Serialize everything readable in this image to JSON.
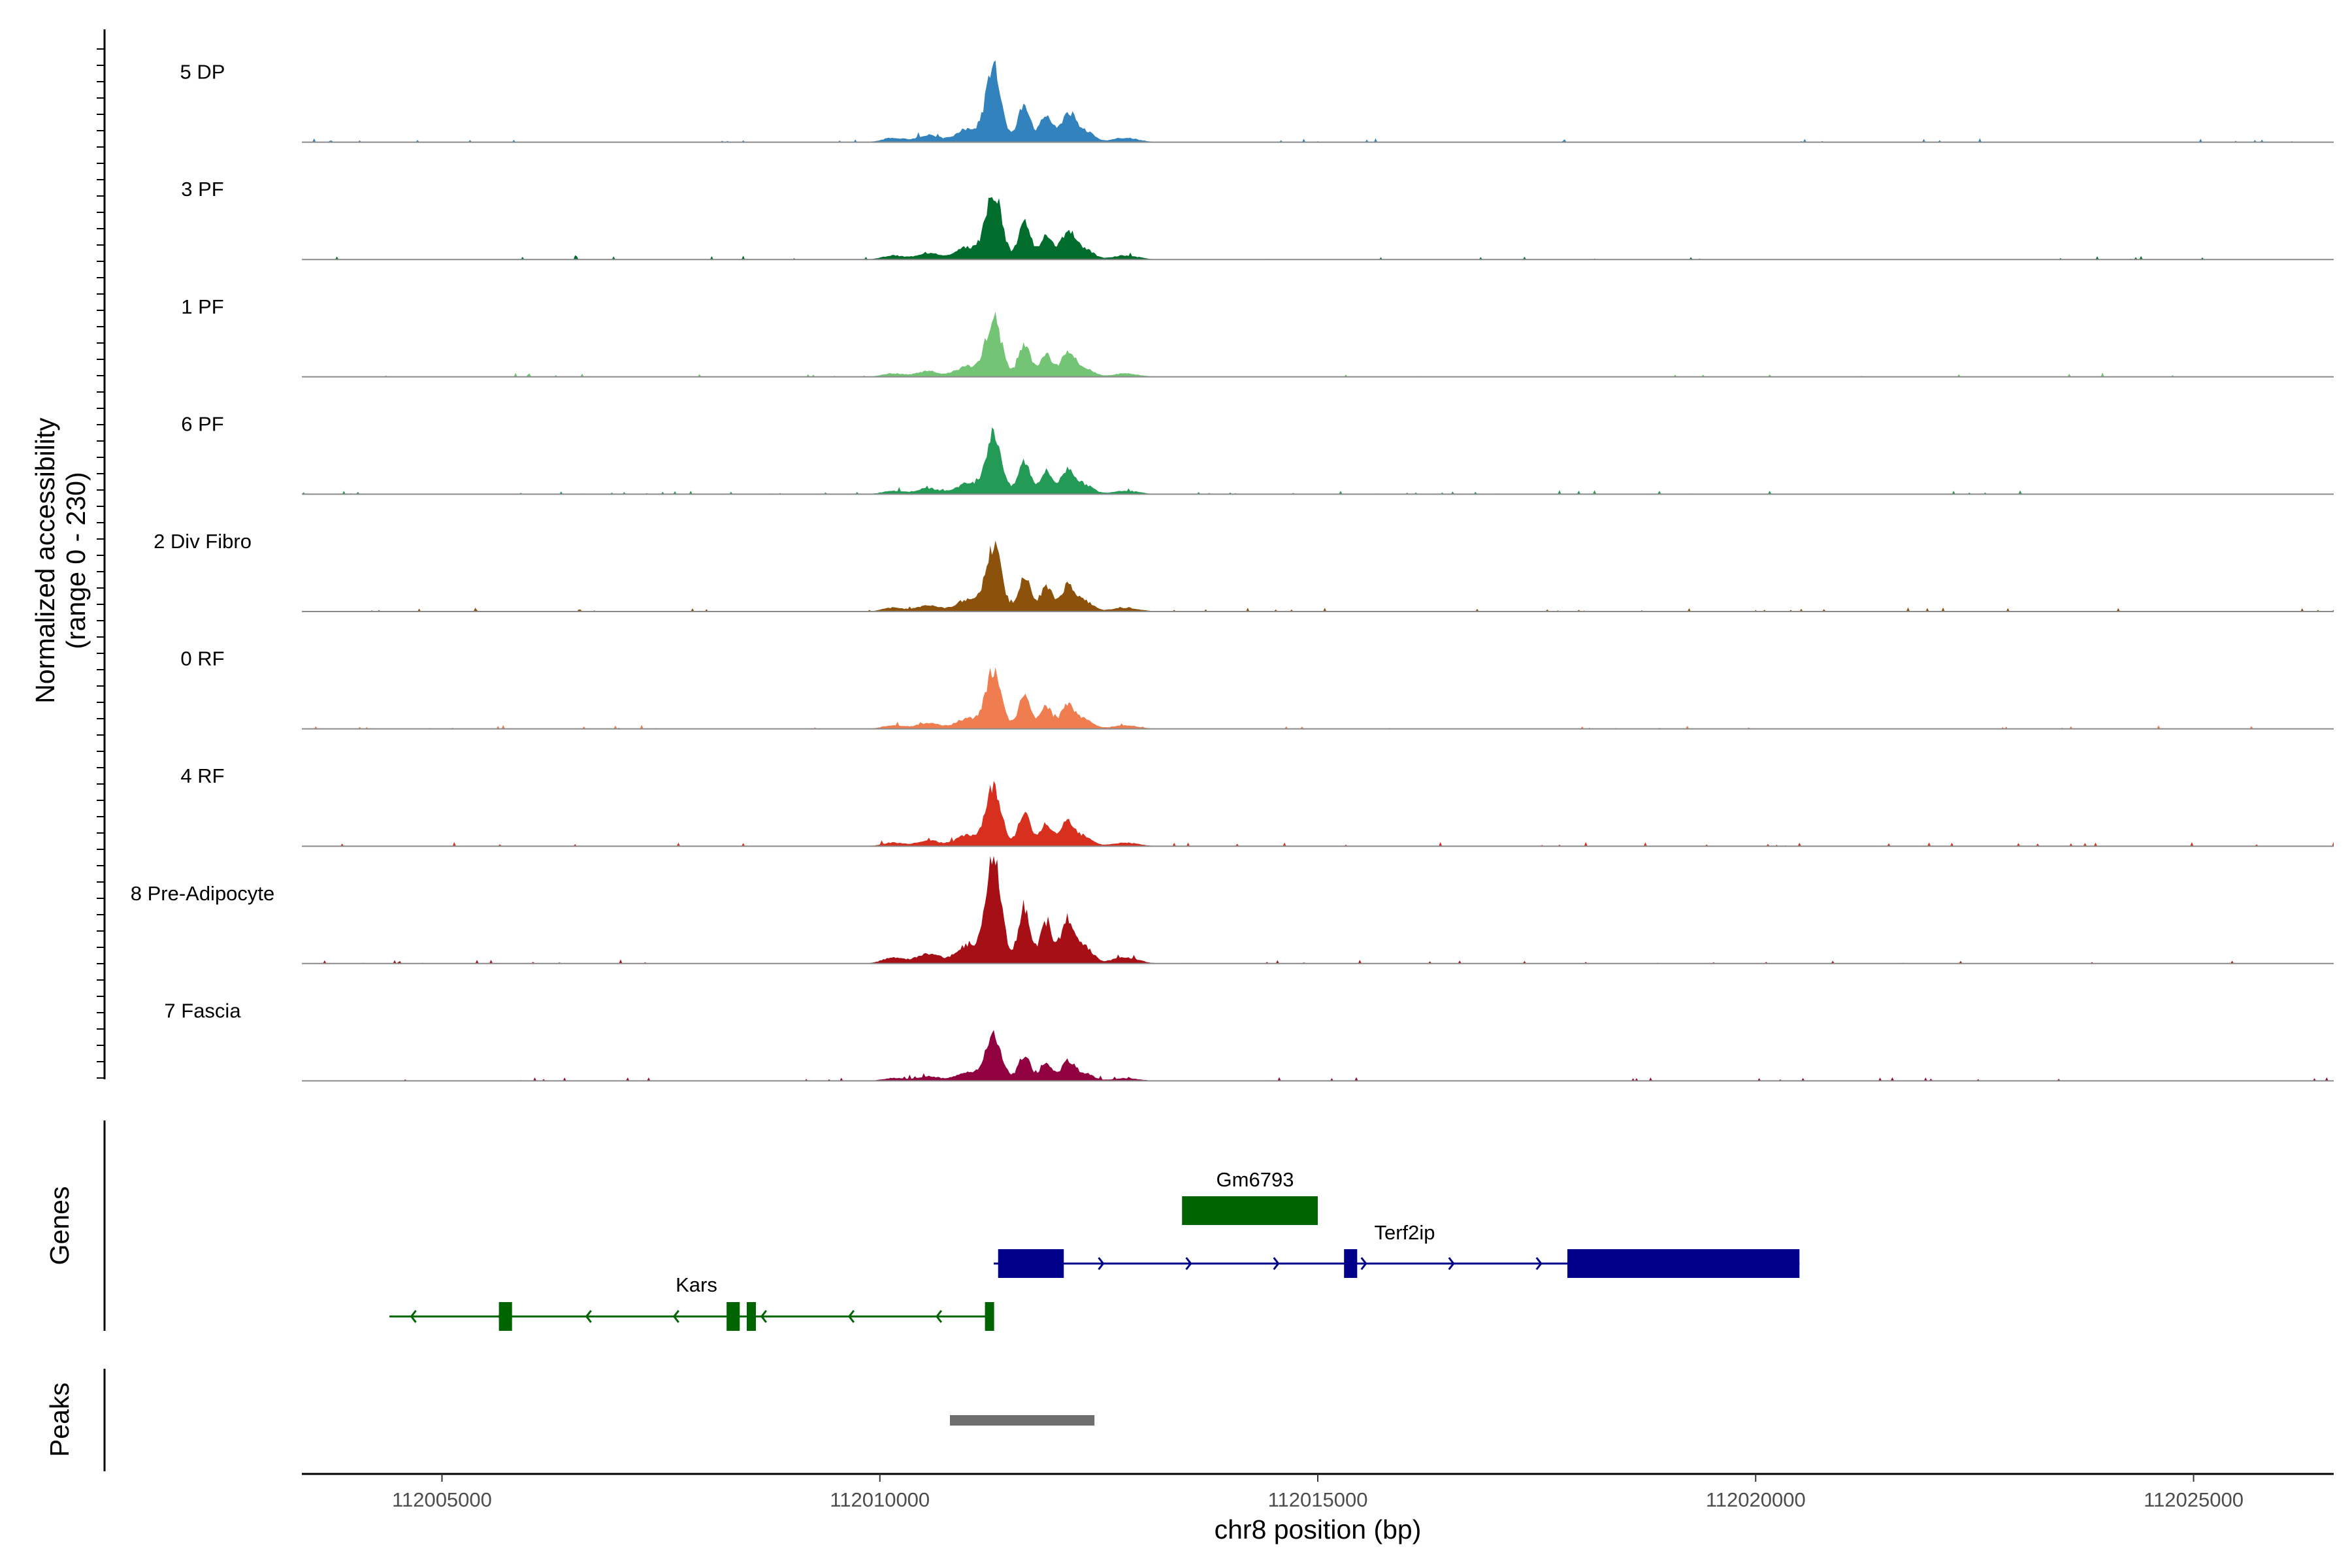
{
  "chart_data": {
    "type": "area",
    "title": "",
    "ylabel_lines": [
      "Normalized accessibility",
      "(range 0 - 230)"
    ],
    "ylim": [
      0,
      230
    ],
    "xlabel": "chr8 position (bp)",
    "xlim": [
      112003400,
      112026600
    ],
    "x_ticks": [
      112005000,
      112010000,
      112015000,
      112020000,
      112025000
    ],
    "x_tick_labels": [
      "112005000",
      "112010000",
      "112015000",
      "112020000",
      "112025000"
    ],
    "tracks": [
      {
        "name": "5 DP",
        "color": "#3182BD",
        "peak_scale": 0.7
      },
      {
        "name": "3 PF",
        "color": "#006D2C",
        "peak_scale": 0.66
      },
      {
        "name": "1 PF",
        "color": "#74C476",
        "peak_scale": 0.56
      },
      {
        "name": "6 PF",
        "color": "#239B56",
        "peak_scale": 0.58
      },
      {
        "name": "2 Div Fibro",
        "color": "#8C510A",
        "peak_scale": 0.62
      },
      {
        "name": "0 RF",
        "color": "#F07D4F",
        "peak_scale": 0.56
      },
      {
        "name": "4 RF",
        "color": "#D7301F",
        "peak_scale": 0.58
      },
      {
        "name": "8 Pre-Adipocyte",
        "color": "#A50F15",
        "peak_scale": 1.0
      },
      {
        "name": "7 Fascia",
        "color": "#91003F",
        "peak_scale": 0.45
      }
    ],
    "signal_peaks": [
      {
        "pos": 112011300,
        "height": 1.0,
        "width": 90
      },
      {
        "pos": 112011650,
        "height": 0.55,
        "width": 70
      },
      {
        "pos": 112011900,
        "height": 0.38,
        "width": 70
      },
      {
        "pos": 112012150,
        "height": 0.42,
        "width": 80
      },
      {
        "pos": 112012350,
        "height": 0.15,
        "width": 90
      },
      {
        "pos": 112011000,
        "height": 0.18,
        "width": 130
      },
      {
        "pos": 112010550,
        "height": 0.1,
        "width": 130
      },
      {
        "pos": 112010150,
        "height": 0.06,
        "width": 120
      },
      {
        "pos": 112012800,
        "height": 0.06,
        "width": 150
      }
    ],
    "gene_track_label": "Genes",
    "genes": [
      {
        "name": "Gm6793",
        "strand": "none",
        "color": "#006400",
        "start": 112013450,
        "end": 112015000,
        "exons": [
          [
            112013450,
            112015000
          ]
        ]
      },
      {
        "name": "Terf2ip",
        "strand": "+",
        "color": "#00008B",
        "start": 112011300,
        "end": 112020500,
        "exons": [
          [
            112011350,
            112012100
          ],
          [
            112015300,
            112015450
          ],
          [
            112017850,
            112020500
          ]
        ]
      },
      {
        "name": "Kars",
        "strand": "-",
        "color": "#006400",
        "start": 112004400,
        "end": 112011300,
        "exons": [
          [
            112005650,
            112005800
          ],
          [
            112008250,
            112008400
          ],
          [
            112008480,
            112008540
          ],
          [
            112011200,
            112011300
          ]
        ]
      }
    ],
    "peak_track_label": "Peaks",
    "peak_regions": [
      {
        "start": 112010800,
        "end": 112012450,
        "color": "#6E6E6E"
      }
    ]
  }
}
